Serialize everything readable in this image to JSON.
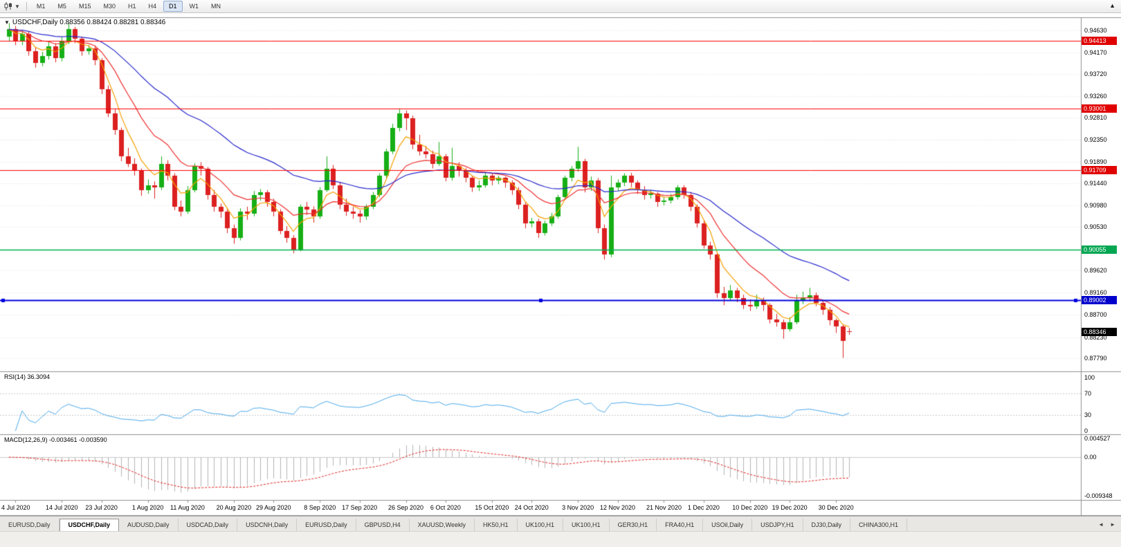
{
  "toolbar": {
    "timeframes": [
      "M1",
      "M5",
      "M15",
      "M30",
      "H1",
      "H4",
      "D1",
      "W1",
      "MN"
    ],
    "active_timeframe": "D1",
    "scroll_up_glyph": "▲",
    "dropdown_caret_glyph": "▼"
  },
  "chart": {
    "title": "USDCHF,Daily 0.88356 0.88424 0.88281 0.88346",
    "collapse_glyph": "▼"
  },
  "indicators": {
    "rsi": {
      "label": "RSI(14) 36.3094",
      "axis_labels": [
        {
          "text": "100",
          "value": 100
        },
        {
          "text": "70",
          "value": 70
        },
        {
          "text": "30",
          "value": 30
        },
        {
          "text": "0",
          "value": 0
        }
      ],
      "level_lines": [
        70,
        30
      ]
    },
    "macd": {
      "label": "MACD(12,26,9) -0.003461 -0.003590",
      "axis_labels": [
        {
          "text": "0.004527",
          "value": 0.004527
        },
        {
          "text": "0.00",
          "value": 0
        },
        {
          "text": "-0.009348",
          "value": -0.009348
        }
      ]
    }
  },
  "price_axis": {
    "grid_labels": [
      {
        "text": "0.94630",
        "value": 0.9463
      },
      {
        "text": "0.94170",
        "value": 0.9417
      },
      {
        "text": "0.93720",
        "value": 0.9372
      },
      {
        "text": "0.93260",
        "value": 0.9326
      },
      {
        "text": "0.92810",
        "value": 0.9281
      },
      {
        "text": "0.92350",
        "value": 0.9235
      },
      {
        "text": "0.91890",
        "value": 0.9189
      },
      {
        "text": "0.91440",
        "value": 0.9144
      },
      {
        "text": "0.90980",
        "value": 0.9098
      },
      {
        "text": "0.90530",
        "value": 0.9053
      },
      {
        "text": "0.89620",
        "value": 0.8962
      },
      {
        "text": "0.89160",
        "value": 0.8916
      },
      {
        "text": "0.88700",
        "value": 0.887
      },
      {
        "text": "0.88230",
        "value": 0.8823
      },
      {
        "text": "0.87790",
        "value": 0.8779
      }
    ],
    "line_labels": [
      {
        "text": "0.94413",
        "value": 0.94413,
        "color": "#e00000"
      },
      {
        "text": "0.93001",
        "value": 0.93001,
        "color": "#e00000"
      },
      {
        "text": "0.91709",
        "value": 0.91709,
        "color": "#e00000"
      },
      {
        "text": "0.90055",
        "value": 0.90055,
        "color": "#00a651"
      },
      {
        "text": "0.89002",
        "value": 0.89002,
        "color": "#0000cc"
      }
    ],
    "current_label": {
      "text": "0.88346",
      "value": 0.88346,
      "color": "#000000"
    }
  },
  "chart_data": {
    "type": "candlestick",
    "symbol": "USDCHF",
    "timeframe": "Daily",
    "last_ohlc": {
      "open": 0.88356,
      "high": 0.88424,
      "low": 0.88281,
      "close": 0.88346
    },
    "price_range": [
      0.8752,
      0.949
    ],
    "candles": [
      [
        0.945,
        0.9478,
        0.944,
        0.9465
      ],
      [
        0.9465,
        0.9472,
        0.9432,
        0.944
      ],
      [
        0.944,
        0.9462,
        0.9432,
        0.9455
      ],
      [
        0.9455,
        0.946,
        0.941,
        0.942
      ],
      [
        0.942,
        0.9428,
        0.9385,
        0.9395
      ],
      [
        0.9395,
        0.9418,
        0.9388,
        0.941
      ],
      [
        0.941,
        0.9438,
        0.9402,
        0.943
      ],
      [
        0.943,
        0.9436,
        0.9396,
        0.9405
      ],
      [
        0.9405,
        0.9448,
        0.9398,
        0.944
      ],
      [
        0.944,
        0.9478,
        0.9434,
        0.9465
      ],
      [
        0.9465,
        0.947,
        0.9436,
        0.9445
      ],
      [
        0.9445,
        0.945,
        0.941,
        0.942
      ],
      [
        0.942,
        0.9432,
        0.9412,
        0.9425
      ],
      [
        0.9425,
        0.943,
        0.939,
        0.94
      ],
      [
        0.94,
        0.9405,
        0.933,
        0.934
      ],
      [
        0.934,
        0.9348,
        0.9282,
        0.929
      ],
      [
        0.929,
        0.9298,
        0.9245,
        0.9255
      ],
      [
        0.9255,
        0.926,
        0.919,
        0.92
      ],
      [
        0.92,
        0.9218,
        0.9178,
        0.9185
      ],
      [
        0.9185,
        0.9196,
        0.916,
        0.917
      ],
      [
        0.917,
        0.9175,
        0.9118,
        0.913
      ],
      [
        0.913,
        0.9152,
        0.9122,
        0.914
      ],
      [
        0.914,
        0.9148,
        0.9112,
        0.9135
      ],
      [
        0.9135,
        0.92,
        0.913,
        0.9185
      ],
      [
        0.9185,
        0.9192,
        0.915,
        0.916
      ],
      [
        0.916,
        0.9165,
        0.9088,
        0.9095
      ],
      [
        0.9095,
        0.9108,
        0.9075,
        0.9085
      ],
      [
        0.9085,
        0.9138,
        0.908,
        0.913
      ],
      [
        0.913,
        0.9186,
        0.9125,
        0.918
      ],
      [
        0.918,
        0.9188,
        0.916,
        0.9175
      ],
      [
        0.9175,
        0.9178,
        0.911,
        0.912
      ],
      [
        0.912,
        0.913,
        0.9085,
        0.9095
      ],
      [
        0.9095,
        0.9102,
        0.9072,
        0.9085
      ],
      [
        0.9085,
        0.909,
        0.904,
        0.905
      ],
      [
        0.905,
        0.9058,
        0.9018,
        0.903
      ],
      [
        0.903,
        0.9092,
        0.9025,
        0.9085
      ],
      [
        0.9085,
        0.9095,
        0.9068,
        0.908
      ],
      [
        0.908,
        0.9128,
        0.9075,
        0.912
      ],
      [
        0.912,
        0.9132,
        0.9108,
        0.9125
      ],
      [
        0.9125,
        0.913,
        0.9095,
        0.9105
      ],
      [
        0.9105,
        0.9112,
        0.9075,
        0.9085
      ],
      [
        0.9085,
        0.909,
        0.9038,
        0.9045
      ],
      [
        0.9045,
        0.9055,
        0.902,
        0.903
      ],
      [
        0.903,
        0.9036,
        0.8998,
        0.9005
      ],
      [
        0.9005,
        0.91,
        0.9002,
        0.9095
      ],
      [
        0.9095,
        0.9105,
        0.9078,
        0.909
      ],
      [
        0.909,
        0.9096,
        0.9062,
        0.9075
      ],
      [
        0.9075,
        0.9136,
        0.907,
        0.913
      ],
      [
        0.913,
        0.92,
        0.9126,
        0.9175
      ],
      [
        0.9175,
        0.9182,
        0.9132,
        0.914
      ],
      [
        0.914,
        0.9146,
        0.909,
        0.91
      ],
      [
        0.91,
        0.9112,
        0.9076,
        0.9085
      ],
      [
        0.9085,
        0.9095,
        0.907,
        0.908
      ],
      [
        0.908,
        0.9088,
        0.9062,
        0.9075
      ],
      [
        0.9075,
        0.91,
        0.9068,
        0.9095
      ],
      [
        0.9095,
        0.9126,
        0.909,
        0.912
      ],
      [
        0.912,
        0.9165,
        0.9115,
        0.916
      ],
      [
        0.916,
        0.9216,
        0.9155,
        0.921
      ],
      [
        0.921,
        0.9268,
        0.9205,
        0.926
      ],
      [
        0.926,
        0.93,
        0.9252,
        0.929
      ],
      [
        0.929,
        0.9296,
        0.9255,
        0.928
      ],
      [
        0.928,
        0.9285,
        0.9215,
        0.9225
      ],
      [
        0.9225,
        0.9245,
        0.9202,
        0.921
      ],
      [
        0.921,
        0.9222,
        0.9196,
        0.9205
      ],
      [
        0.9205,
        0.9212,
        0.9175,
        0.9185
      ],
      [
        0.9185,
        0.923,
        0.918,
        0.92
      ],
      [
        0.92,
        0.9205,
        0.9148,
        0.9155
      ],
      [
        0.9155,
        0.9218,
        0.915,
        0.918
      ],
      [
        0.918,
        0.9188,
        0.9158,
        0.917
      ],
      [
        0.917,
        0.9176,
        0.9146,
        0.9155
      ],
      [
        0.9155,
        0.916,
        0.9126,
        0.9135
      ],
      [
        0.9135,
        0.915,
        0.9128,
        0.914
      ],
      [
        0.914,
        0.9166,
        0.9135,
        0.916
      ],
      [
        0.916,
        0.9165,
        0.914,
        0.915
      ],
      [
        0.915,
        0.916,
        0.9142,
        0.9155
      ],
      [
        0.9155,
        0.9158,
        0.9135,
        0.9145
      ],
      [
        0.9145,
        0.915,
        0.912,
        0.913
      ],
      [
        0.913,
        0.9136,
        0.909,
        0.91
      ],
      [
        0.91,
        0.9105,
        0.905,
        0.906
      ],
      [
        0.906,
        0.9072,
        0.9052,
        0.9065
      ],
      [
        0.9065,
        0.907,
        0.903,
        0.904
      ],
      [
        0.904,
        0.9066,
        0.9035,
        0.906
      ],
      [
        0.906,
        0.9082,
        0.9055,
        0.9075
      ],
      [
        0.9075,
        0.912,
        0.907,
        0.9115
      ],
      [
        0.9115,
        0.916,
        0.911,
        0.9155
      ],
      [
        0.9155,
        0.918,
        0.9148,
        0.9175
      ],
      [
        0.9175,
        0.922,
        0.9168,
        0.919
      ],
      [
        0.919,
        0.9195,
        0.9125,
        0.9135
      ],
      [
        0.9135,
        0.9158,
        0.9128,
        0.915
      ],
      [
        0.915,
        0.9155,
        0.904,
        0.905
      ],
      [
        0.905,
        0.9058,
        0.8985,
        0.8995
      ],
      [
        0.8995,
        0.916,
        0.899,
        0.9135
      ],
      [
        0.9135,
        0.9152,
        0.9128,
        0.9145
      ],
      [
        0.9145,
        0.9165,
        0.9138,
        0.916
      ],
      [
        0.916,
        0.9166,
        0.9136,
        0.9145
      ],
      [
        0.9145,
        0.915,
        0.9122,
        0.913
      ],
      [
        0.913,
        0.9138,
        0.911,
        0.912
      ],
      [
        0.912,
        0.913,
        0.9112,
        0.9122
      ],
      [
        0.9122,
        0.9126,
        0.9095,
        0.9105
      ],
      [
        0.9105,
        0.9115,
        0.9098,
        0.9108
      ],
      [
        0.9108,
        0.9122,
        0.9102,
        0.9115
      ],
      [
        0.9115,
        0.914,
        0.911,
        0.9135
      ],
      [
        0.9135,
        0.914,
        0.9112,
        0.912
      ],
      [
        0.912,
        0.9126,
        0.9086,
        0.9095
      ],
      [
        0.9095,
        0.91,
        0.9052,
        0.906
      ],
      [
        0.906,
        0.9068,
        0.9008,
        0.9015
      ],
      [
        0.9015,
        0.9022,
        0.8985,
        0.8995
      ],
      [
        0.8995,
        0.9,
        0.8905,
        0.8915
      ],
      [
        0.8915,
        0.8928,
        0.889,
        0.8905
      ],
      [
        0.8905,
        0.8932,
        0.89,
        0.892
      ],
      [
        0.892,
        0.8926,
        0.8896,
        0.8905
      ],
      [
        0.8905,
        0.8912,
        0.8882,
        0.889
      ],
      [
        0.889,
        0.8902,
        0.8878,
        0.8888
      ],
      [
        0.8888,
        0.8912,
        0.8882,
        0.89
      ],
      [
        0.89,
        0.8906,
        0.8878,
        0.889
      ],
      [
        0.889,
        0.8894,
        0.8852,
        0.886
      ],
      [
        0.886,
        0.8872,
        0.8845,
        0.8855
      ],
      [
        0.8855,
        0.886,
        0.882,
        0.884
      ],
      [
        0.884,
        0.8865,
        0.8835,
        0.8855
      ],
      [
        0.8855,
        0.8912,
        0.885,
        0.89
      ],
      [
        0.89,
        0.8918,
        0.8892,
        0.8905
      ],
      [
        0.8905,
        0.8926,
        0.8898,
        0.891
      ],
      [
        0.891,
        0.8916,
        0.8888,
        0.8895
      ],
      [
        0.8895,
        0.89,
        0.887,
        0.888
      ],
      [
        0.888,
        0.8886,
        0.8848,
        0.8858
      ],
      [
        0.8858,
        0.8862,
        0.8832,
        0.8845
      ],
      [
        0.8845,
        0.885,
        0.878,
        0.8815
      ],
      [
        0.88356,
        0.88424,
        0.88281,
        0.88346
      ]
    ],
    "date_ticks": [
      {
        "label": "4 Jul 2020",
        "index": 1
      },
      {
        "label": "14 Jul 2020",
        "index": 8
      },
      {
        "label": "23 Jul 2020",
        "index": 14
      },
      {
        "label": "1 Aug 2020",
        "index": 21
      },
      {
        "label": "11 Aug 2020",
        "index": 27
      },
      {
        "label": "20 Aug 2020",
        "index": 34
      },
      {
        "label": "29 Aug 2020",
        "index": 40
      },
      {
        "label": "8 Sep 2020",
        "index": 47
      },
      {
        "label": "17 Sep 2020",
        "index": 53
      },
      {
        "label": "26 Sep 2020",
        "index": 60
      },
      {
        "label": "6 Oct 2020",
        "index": 66
      },
      {
        "label": "15 Oct 2020",
        "index": 73
      },
      {
        "label": "24 Oct 2020",
        "index": 79
      },
      {
        "label": "3 Nov 2020",
        "index": 86
      },
      {
        "label": "12 Nov 2020",
        "index": 92
      },
      {
        "label": "21 Nov 2020",
        "index": 99
      },
      {
        "label": "1 Dec 2020",
        "index": 105
      },
      {
        "label": "10 Dec 2020",
        "index": 112
      },
      {
        "label": "19 Dec 2020",
        "index": 118
      },
      {
        "label": "30 Dec 2020",
        "index": 125
      }
    ],
    "horizontal_lines": [
      {
        "value": 0.94413,
        "color": "#ff0000",
        "width": 1
      },
      {
        "value": 0.93001,
        "color": "#ff0000",
        "width": 1
      },
      {
        "value": 0.91709,
        "color": "#ff0000",
        "width": 1
      },
      {
        "value": 0.90055,
        "color": "#00b050",
        "width": 1.5
      },
      {
        "value": 0.89002,
        "color": "#0000dd",
        "width": 2
      }
    ],
    "current_price": 0.88346,
    "moving_averages": [
      {
        "period": 5,
        "color": "#f5a000"
      },
      {
        "period": 13,
        "color": "#f03030"
      },
      {
        "period": 34,
        "color": "#2626cc"
      }
    ],
    "rsi": {
      "period": 14,
      "value": 36.3094,
      "range": [
        0,
        100
      ],
      "levels": [
        70,
        30
      ]
    },
    "macd": {
      "fast": 12,
      "slow": 26,
      "signal": 9,
      "main_value": -0.003461,
      "signal_value": -0.00359,
      "range": [
        -0.009348,
        0.004527
      ]
    },
    "colors": {
      "bull": "#16af16",
      "bear": "#dc2020",
      "background": "#ffffff",
      "grid": "#e3e3e3",
      "separator": "#8f8f8f",
      "rsi_line": "#49a9ea",
      "rsi_level": "#c9c9c9",
      "macd_histogram": "#b4b4b4",
      "macd_signal": "#e02020"
    }
  },
  "tabs": {
    "items": [
      "EURUSD,Daily",
      "USDCHF,Daily",
      "AUDUSD,Daily",
      "USDCAD,Daily",
      "USDCNH,Daily",
      "EURUSD,Daily",
      "GBPUSD,H4",
      "XAUUSD,Weekly",
      "HK50,H1",
      "UK100,H1",
      "UK100,H1",
      "GER30,H1",
      "FRA40,H1",
      "USOil,Daily",
      "USDJPY,H1",
      "DJ30,Daily",
      "CHINA300,H1"
    ],
    "active_index": 1,
    "left_arrow_glyph": "◄",
    "right_arrow_glyph": "►"
  }
}
